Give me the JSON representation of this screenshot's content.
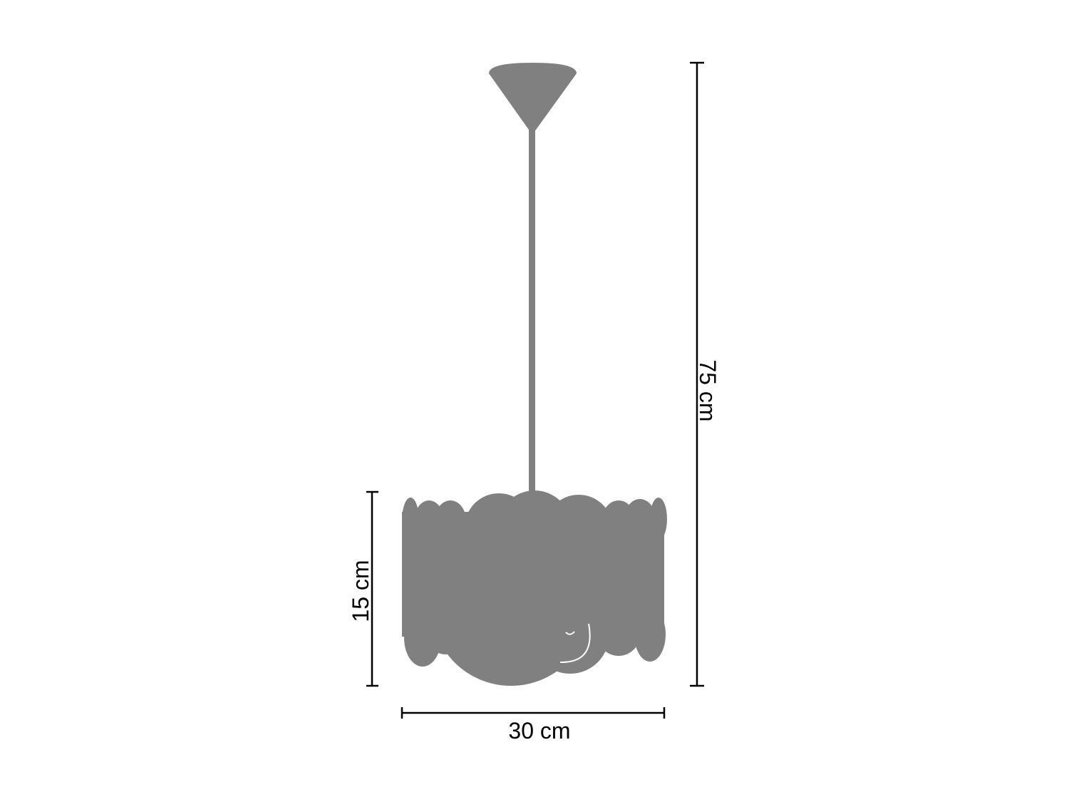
{
  "colors": {
    "lamp": "#808080",
    "dimension_lines": "#000000",
    "background": "#ffffff"
  },
  "dimensions": {
    "total_height": "75 cm",
    "shade_height": "15 cm",
    "shade_width": "30 cm"
  }
}
